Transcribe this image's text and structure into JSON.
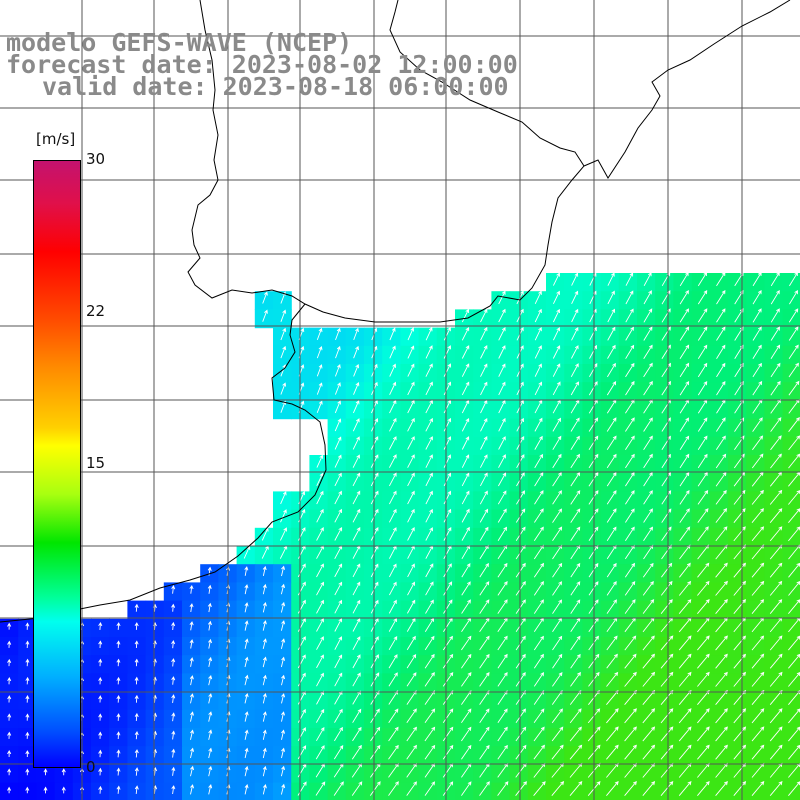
{
  "title": {
    "line1": "modelo GEFS-WAVE (NCEP)",
    "line2": "forecast date: 2023-08-02 12:00:00",
    "line3": "valid date: 2023-08-18 06:00:00"
  },
  "colorbar": {
    "unit": "[m/s]",
    "ticks": [
      "30",
      "22",
      "15",
      "0"
    ],
    "range": [
      0,
      30
    ],
    "colors": [
      "#0000ff",
      "#00b0ff",
      "#00ffee",
      "#00e600",
      "#ffff00",
      "#ff8a00",
      "#ff0000",
      "#c4126e"
    ]
  },
  "map": {
    "variable": "wind speed with direction arrows",
    "land_color": "#ffffff",
    "gridline_color": "#555555",
    "coastline_color": "#000000",
    "arrow_color": "#ffffff"
  }
}
